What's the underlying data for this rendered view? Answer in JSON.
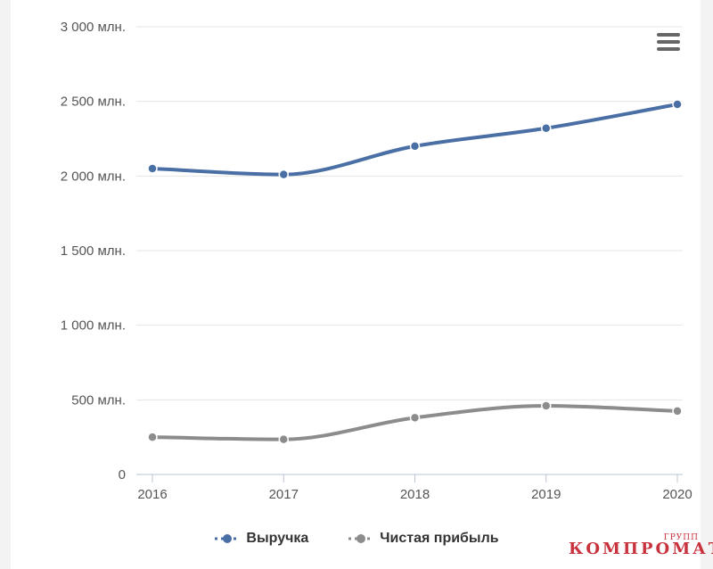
{
  "chart_data": {
    "type": "line",
    "title": "",
    "xlabel": "",
    "ylabel": "",
    "x": [
      "2016",
      "2017",
      "2018",
      "2019",
      "2020"
    ],
    "ylim": [
      0,
      3000
    ],
    "y_ticks": [
      0,
      500,
      1000,
      1500,
      2000,
      2500,
      3000
    ],
    "y_tick_labels": [
      "0",
      "500 млн.",
      "1 000 млн.",
      "1 500 млн.",
      "2 000 млн.",
      "2 500 млн.",
      "3 000 млн."
    ],
    "grid": true,
    "legend_position": "bottom-center",
    "smooth": true,
    "series": [
      {
        "name": "Выручка",
        "color": "#4a6fa5",
        "values": [
          2050,
          2010,
          2200,
          2320,
          2480
        ]
      },
      {
        "name": "Чистая прибыль",
        "color": "#8c8c8c",
        "values": [
          250,
          235,
          380,
          460,
          425
        ]
      }
    ]
  },
  "menu_icon": "hamburger-icon",
  "watermark": {
    "sup": "ГРУПП",
    "main": "КОМПРОМАТ"
  }
}
